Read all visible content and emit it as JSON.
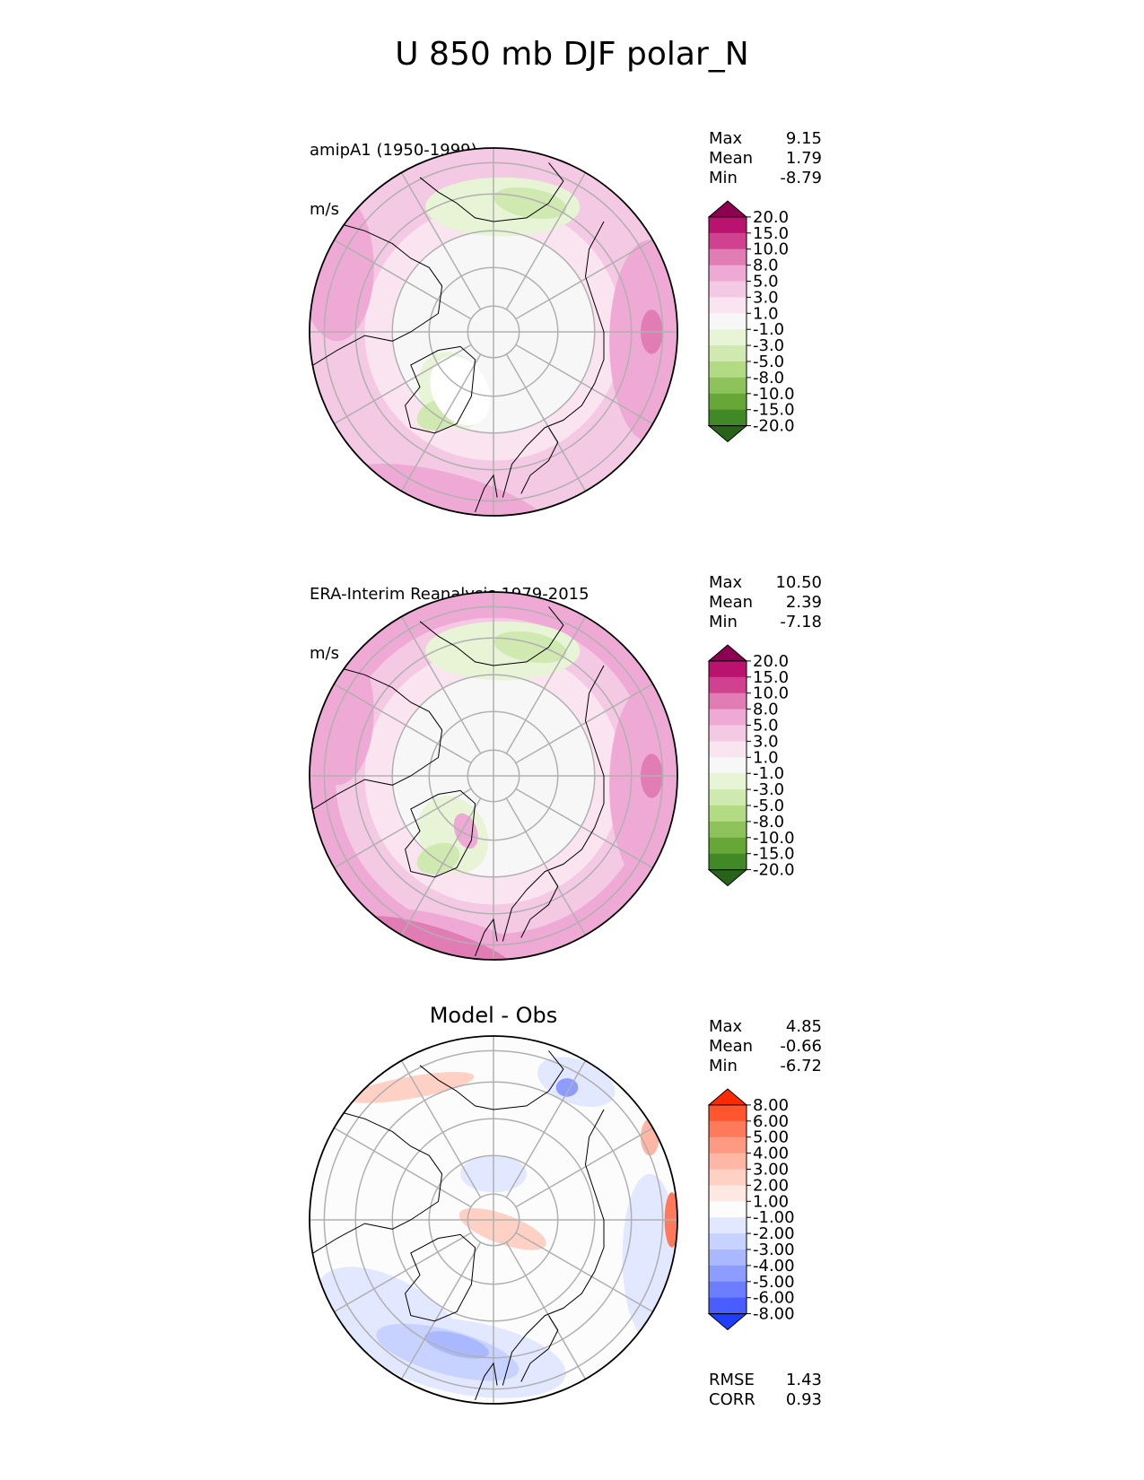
{
  "figure": {
    "title": "U 850 mb DJF polar_N"
  },
  "panels": [
    {
      "title_line1": "amipA1 (1950-1999)",
      "title_line2": "m/s",
      "stats": [
        {
          "label": "Max",
          "value": "9.15"
        },
        {
          "label": "Mean",
          "value": "1.79"
        },
        {
          "label": "Min",
          "value": "-8.79"
        }
      ],
      "colorbar": {
        "levels": [
          "20.0",
          "15.0",
          "10.0",
          "8.0",
          "5.0",
          "3.0",
          "1.0",
          "-1.0",
          "-3.0",
          "-5.0",
          "-8.0",
          "-10.0",
          "-15.0",
          "-20.0"
        ],
        "colors": [
          "#8e0152",
          "#b9136f",
          "#d0428f",
          "#e17cb4",
          "#eeaad4",
          "#f4c9e3",
          "#fae4f0",
          "#f7f7f7",
          "#e7f4d6",
          "#cfe9b0",
          "#b2db84",
          "#8dc35a",
          "#67a738",
          "#418927",
          "#276419"
        ]
      }
    },
    {
      "title_line1": "ERA-Interim Reanalysis 1979-2015",
      "title_line2": "m/s",
      "stats": [
        {
          "label": "Max",
          "value": "10.50"
        },
        {
          "label": "Mean",
          "value": "2.39"
        },
        {
          "label": "Min",
          "value": "-7.18"
        }
      ],
      "colorbar": {
        "levels": [
          "20.0",
          "15.0",
          "10.0",
          "8.0",
          "5.0",
          "3.0",
          "1.0",
          "-1.0",
          "-3.0",
          "-5.0",
          "-8.0",
          "-10.0",
          "-15.0",
          "-20.0"
        ],
        "colors": [
          "#8e0152",
          "#b9136f",
          "#d0428f",
          "#e17cb4",
          "#eeaad4",
          "#f4c9e3",
          "#fae4f0",
          "#f7f7f7",
          "#e7f4d6",
          "#cfe9b0",
          "#b2db84",
          "#8dc35a",
          "#67a738",
          "#418927",
          "#276419"
        ]
      }
    },
    {
      "title": "Model - Obs",
      "stats": [
        {
          "label": "Max",
          "value": "4.85"
        },
        {
          "label": "Mean",
          "value": "-0.66"
        },
        {
          "label": "Min",
          "value": "-6.72"
        }
      ],
      "metrics": [
        {
          "label": "RMSE",
          "value": "1.43"
        },
        {
          "label": "CORR",
          "value": "0.93"
        }
      ],
      "colorbar": {
        "levels": [
          "8.00",
          "6.00",
          "5.00",
          "4.00",
          "3.00",
          "2.00",
          "1.00",
          "-1.00",
          "-2.00",
          "-3.00",
          "-4.00",
          "-5.00",
          "-6.00",
          "-8.00"
        ],
        "colors": [
          "#ff2a00",
          "#ff5630",
          "#ff7a5a",
          "#ff9a82",
          "#ffb6a4",
          "#ffd0c4",
          "#ffe8e2",
          "#fcfcfc",
          "#e2e8ff",
          "#c8d2ff",
          "#aab8ff",
          "#8c9cff",
          "#6c7eff",
          "#4a5eff",
          "#1f3dff"
        ]
      }
    }
  ],
  "chart_data": [
    {
      "type": "heatmap",
      "projection": "north polar stereographic",
      "variable": "U 850 mb DJF",
      "title": "amipA1 (1950-1999)",
      "units": "m/s",
      "stats": {
        "max": 9.15,
        "mean": 1.79,
        "min": -8.79
      },
      "color_levels": [
        -20,
        -15,
        -10,
        -8,
        -5,
        -3,
        -1,
        1,
        3,
        5,
        8,
        10,
        15,
        20
      ]
    },
    {
      "type": "heatmap",
      "projection": "north polar stereographic",
      "variable": "U 850 mb DJF",
      "title": "ERA-Interim Reanalysis 1979-2015",
      "units": "m/s",
      "stats": {
        "max": 10.5,
        "mean": 2.39,
        "min": -7.18
      },
      "color_levels": [
        -20,
        -15,
        -10,
        -8,
        -5,
        -3,
        -1,
        1,
        3,
        5,
        8,
        10,
        15,
        20
      ]
    },
    {
      "type": "heatmap",
      "projection": "north polar stereographic",
      "title": "Model - Obs",
      "stats": {
        "max": 4.85,
        "mean": -0.66,
        "min": -6.72,
        "rmse": 1.43,
        "corr": 0.93
      },
      "color_levels": [
        -8,
        -6,
        -5,
        -4,
        -3,
        -2,
        -1,
        1,
        2,
        3,
        4,
        5,
        6,
        8
      ]
    }
  ]
}
